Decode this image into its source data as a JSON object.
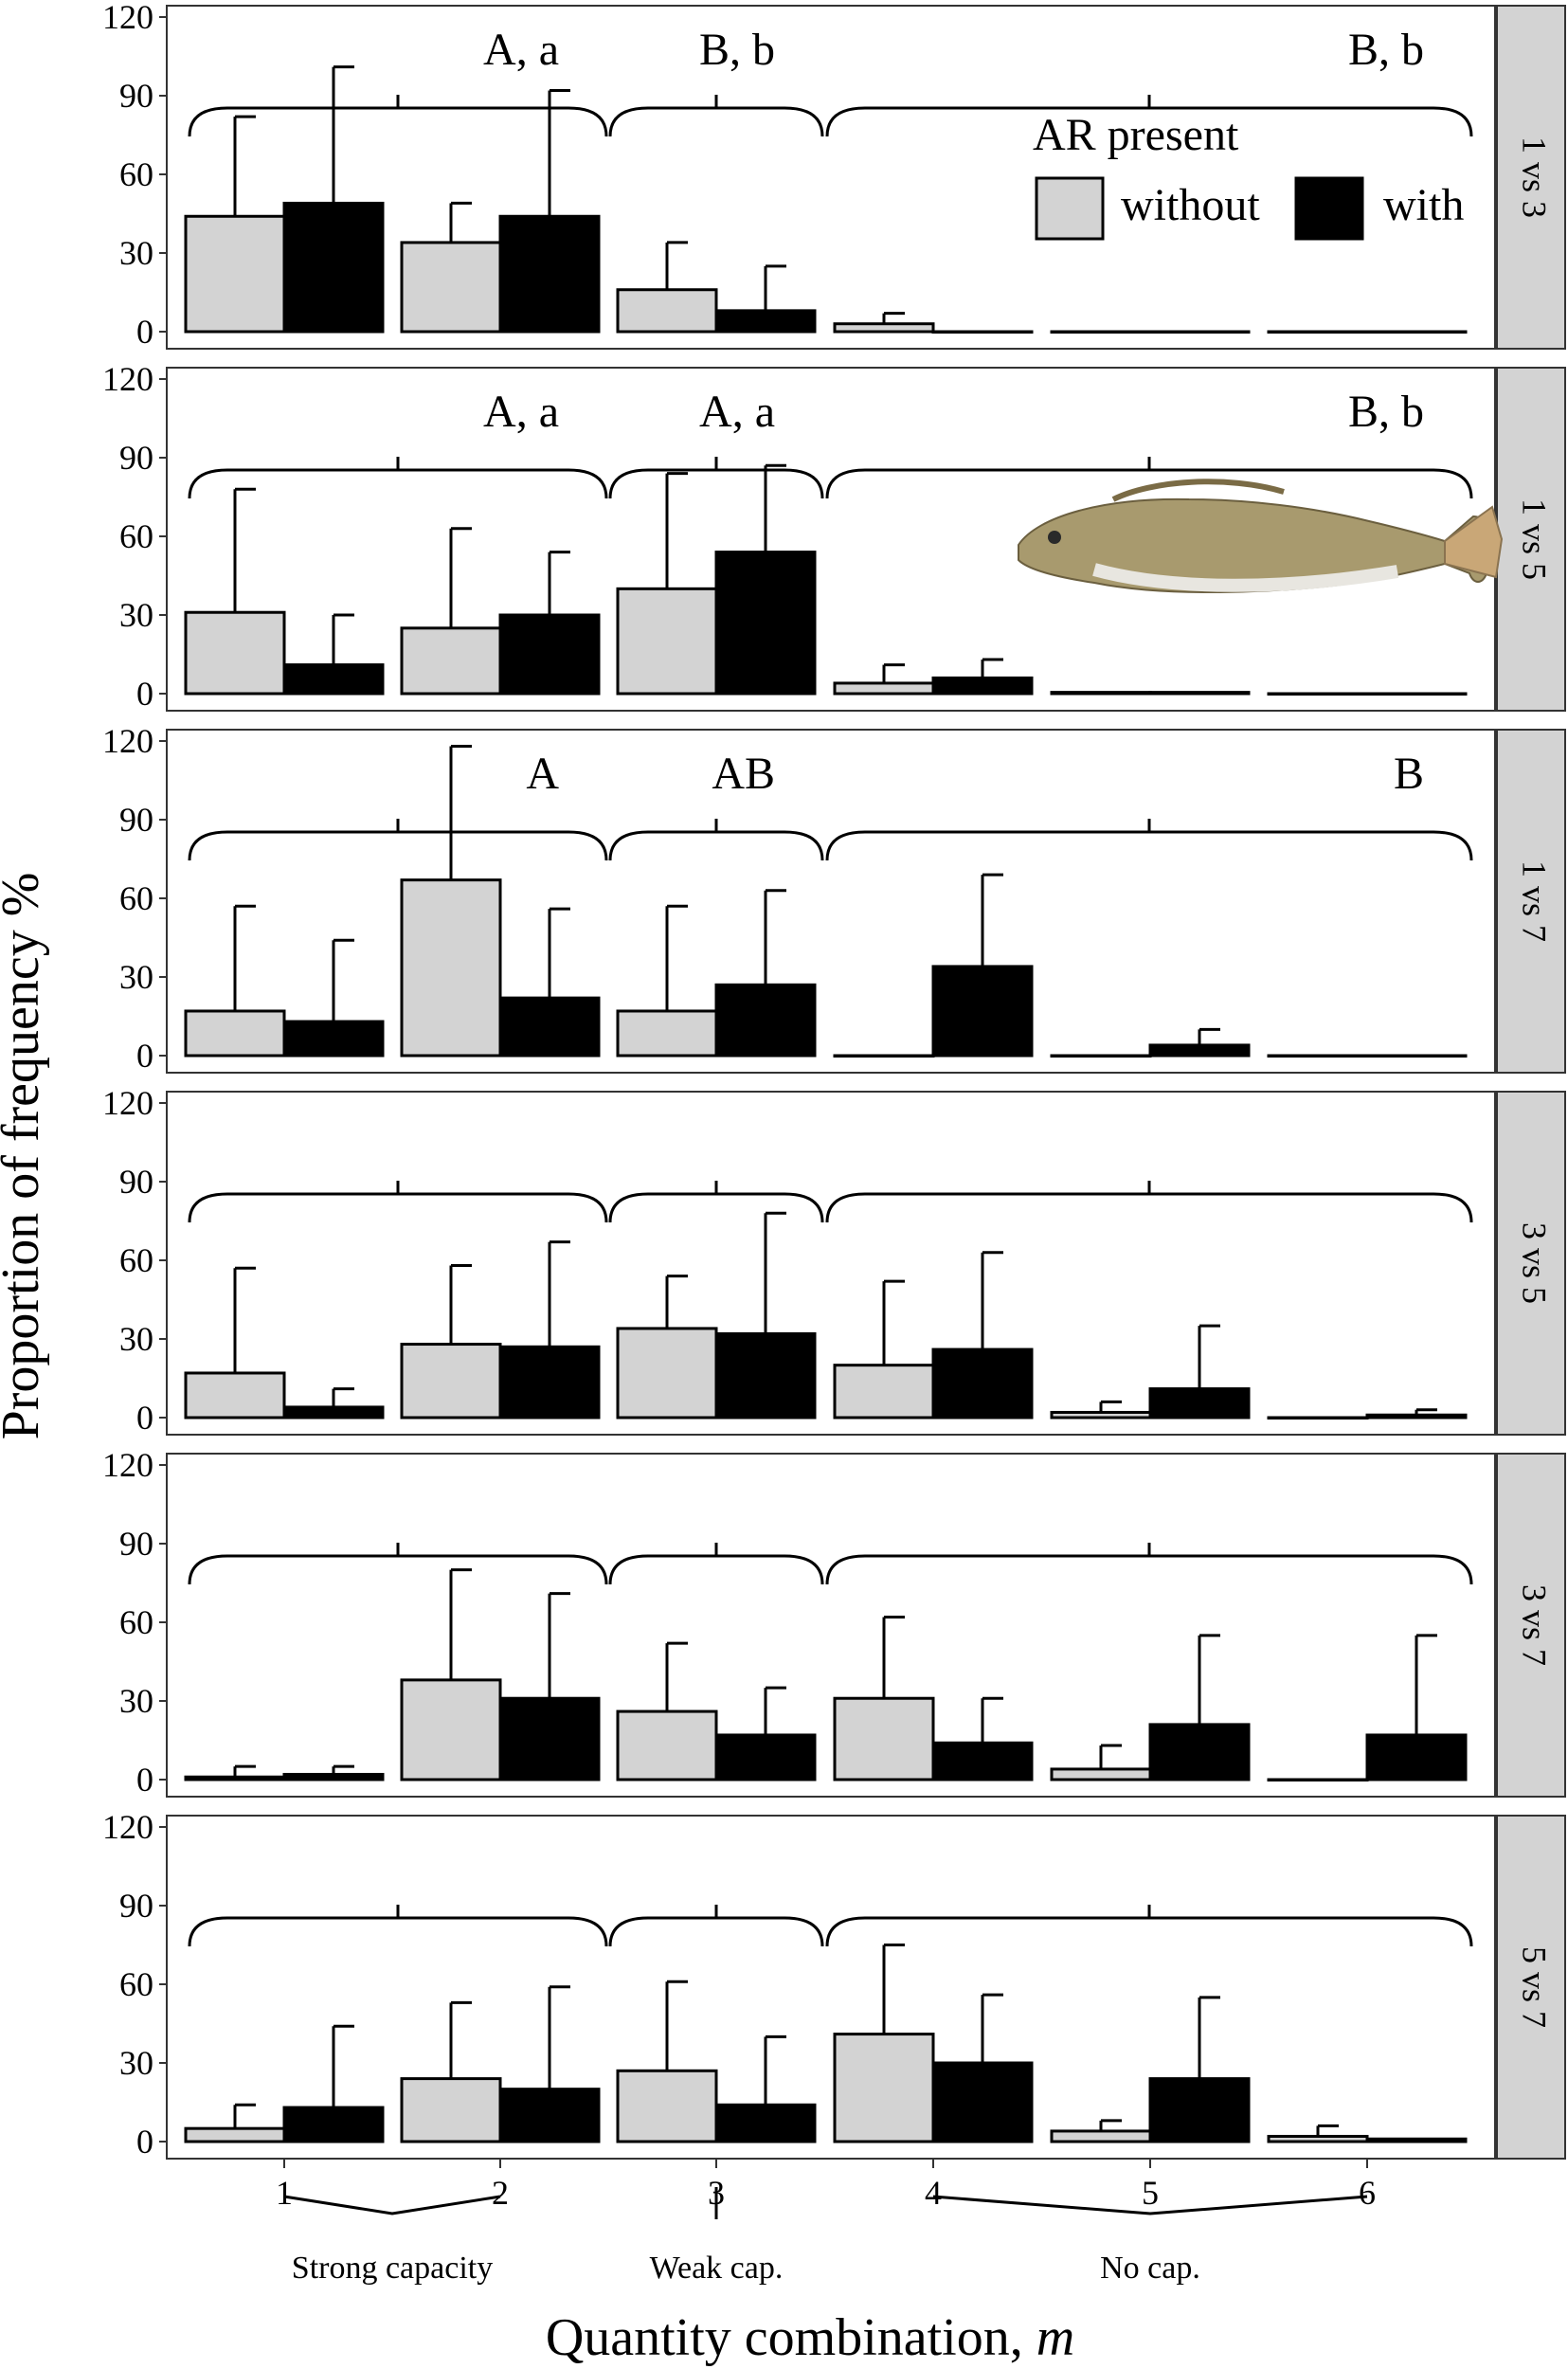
{
  "chart_data": {
    "type": "bar",
    "facet_by": "Quantity comparison",
    "xlabel": "Quantity combination, ",
    "xlabel_italic": "m",
    "ylabel": "Proportion of frequency %",
    "ylim": [
      0,
      120
    ],
    "yticks": [
      0,
      30,
      60,
      90,
      120
    ],
    "categories": [
      "1",
      "2",
      "3",
      "4",
      "5",
      "6"
    ],
    "legend": {
      "title": "AR present",
      "entries": [
        {
          "name": "without",
          "color": "#d3d3d3"
        },
        {
          "name": "with",
          "color": "#000000"
        }
      ],
      "placement": "top-right of first panel"
    },
    "groupings": [
      {
        "label": "Strong capacity",
        "categories": [
          "1",
          "2"
        ]
      },
      {
        "label": "Weak cap.",
        "categories": [
          "3"
        ]
      },
      {
        "label": "No cap.",
        "categories": [
          "4",
          "5",
          "6"
        ]
      }
    ],
    "panels": [
      {
        "label": "1 vs 3",
        "significance": [
          "A, a",
          "B, b",
          "B, b"
        ],
        "series": [
          {
            "name": "without",
            "values": [
              44,
              34,
              16,
              3,
              0,
              0
            ],
            "errors": [
              82,
              49,
              34,
              7,
              0,
              0
            ]
          },
          {
            "name": "with",
            "values": [
              49,
              44,
              8,
              0,
              0,
              0
            ],
            "errors": [
              101,
              92,
              25,
              0,
              0,
              0
            ]
          }
        ]
      },
      {
        "label": "1 vs 5",
        "significance": [
          "A, a",
          "A, a",
          "B, b"
        ],
        "series": [
          {
            "name": "without",
            "values": [
              31,
              25,
              40,
              4,
              0.5,
              0
            ],
            "errors": [
              78,
              63,
              84,
              11,
              0.5,
              0
            ]
          },
          {
            "name": "with",
            "values": [
              11,
              30,
              54,
              6,
              0.5,
              0
            ],
            "errors": [
              30,
              54,
              87,
              13,
              0.5,
              0
            ]
          }
        ]
      },
      {
        "label": "1 vs 7",
        "significance": [
          "A",
          "AB",
          "B"
        ],
        "series": [
          {
            "name": "without",
            "values": [
              17,
              67,
              17,
              0,
              0,
              0
            ],
            "errors": [
              57,
              118,
              57,
              0,
              0,
              0
            ]
          },
          {
            "name": "with",
            "values": [
              13,
              22,
              27,
              34,
              4,
              0
            ],
            "errors": [
              44,
              56,
              63,
              69,
              10,
              0
            ]
          }
        ]
      },
      {
        "label": "3 vs 5",
        "significance": [
          "",
          "",
          ""
        ],
        "series": [
          {
            "name": "without",
            "values": [
              17,
              28,
              34,
              20,
              2,
              0
            ],
            "errors": [
              57,
              58,
              54,
              52,
              6,
              0
            ]
          },
          {
            "name": "with",
            "values": [
              4,
              27,
              32,
              26,
              11,
              1
            ],
            "errors": [
              11,
              67,
              78,
              63,
              35,
              3
            ]
          }
        ]
      },
      {
        "label": "3 vs 7",
        "significance": [
          "",
          "",
          ""
        ],
        "series": [
          {
            "name": "without",
            "values": [
              1,
              38,
              26,
              31,
              4,
              0
            ],
            "errors": [
              5,
              80,
              52,
              62,
              13,
              0
            ]
          },
          {
            "name": "with",
            "values": [
              2,
              31,
              17,
              14,
              21,
              17
            ],
            "errors": [
              5,
              71,
              35,
              31,
              55,
              55
            ]
          }
        ]
      },
      {
        "label": "5 vs 7",
        "significance": [
          "",
          "",
          ""
        ],
        "series": [
          {
            "name": "without",
            "values": [
              5,
              24,
              27,
              41,
              4,
              2
            ],
            "errors": [
              14,
              53,
              61,
              75,
              8,
              6
            ]
          },
          {
            "name": "with",
            "values": [
              13,
              20,
              14,
              30,
              24,
              1
            ],
            "errors": [
              44,
              59,
              40,
              56,
              55,
              1
            ]
          }
        ]
      }
    ]
  }
}
